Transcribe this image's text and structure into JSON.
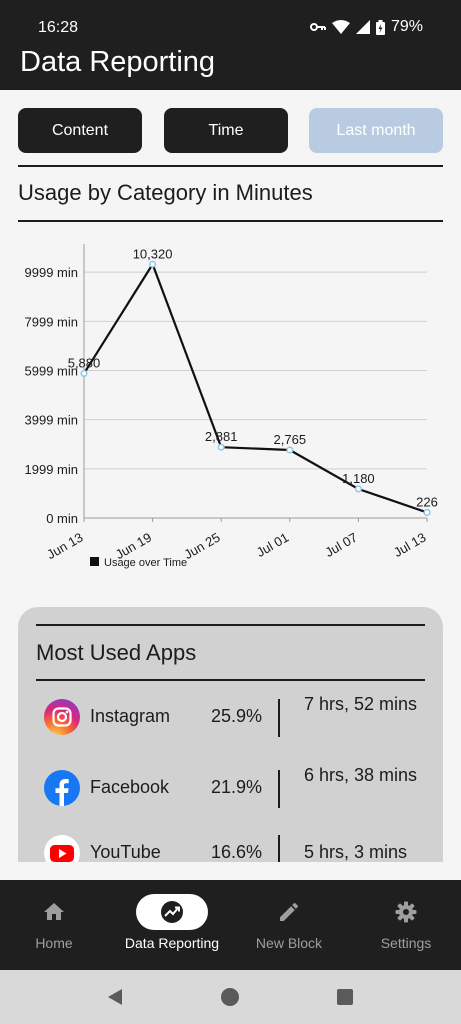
{
  "status_bar": {
    "time": "16:28",
    "battery": "79%"
  },
  "app_bar": {
    "title": "Data Reporting"
  },
  "filters": [
    {
      "label": "Content",
      "active": false
    },
    {
      "label": "Time",
      "active": false
    },
    {
      "label": "Last month",
      "active": true
    }
  ],
  "section_title": "Usage by Category in Minutes",
  "chart_data": {
    "type": "line",
    "x": [
      "Jun 13",
      "Jun 19",
      "Jun 25",
      "Jul 01",
      "Jul 07",
      "Jul 13"
    ],
    "series": [
      {
        "name": "Usage over Time",
        "values": [
          5880,
          10320,
          2881,
          2765,
          1180,
          226
        ]
      }
    ],
    "data_labels": [
      "5,880",
      "10,320",
      "2,881",
      "2,765",
      "1,180",
      "226"
    ],
    "y_ticks": [
      0,
      1999,
      3999,
      5999,
      7999,
      9999
    ],
    "y_tick_labels": [
      "0 min",
      "1999 min",
      "3999 min",
      "5999 min",
      "7999 min",
      "9999 min"
    ],
    "ylim": [
      0,
      10900
    ],
    "grid": true,
    "legend_position": "bottom-left"
  },
  "most_used": {
    "title": "Most Used Apps",
    "apps": [
      {
        "name": "Instagram",
        "percent": "25.9%",
        "time": "7 hrs, 52 mins",
        "icon": "instagram-icon"
      },
      {
        "name": "Facebook",
        "percent": "21.9%",
        "time": "6 hrs, 38 mins",
        "icon": "facebook-icon"
      },
      {
        "name": "YouTube",
        "percent": "16.6%",
        "time": "5 hrs, 3 mins",
        "icon": "youtube-icon"
      }
    ]
  },
  "bottom_nav": {
    "items": [
      {
        "label": "Home",
        "icon": "home-icon"
      },
      {
        "label": "Data Reporting",
        "icon": "data-reporting-icon",
        "active": true
      },
      {
        "label": "New Block",
        "icon": "pencil-icon"
      },
      {
        "label": "Settings",
        "icon": "gear-icon"
      }
    ]
  },
  "colors": {
    "dark": "#1f1f1f",
    "active_filter": "#b9cbe0",
    "card": "#d1d1d1",
    "point": "#8ec8e8"
  }
}
